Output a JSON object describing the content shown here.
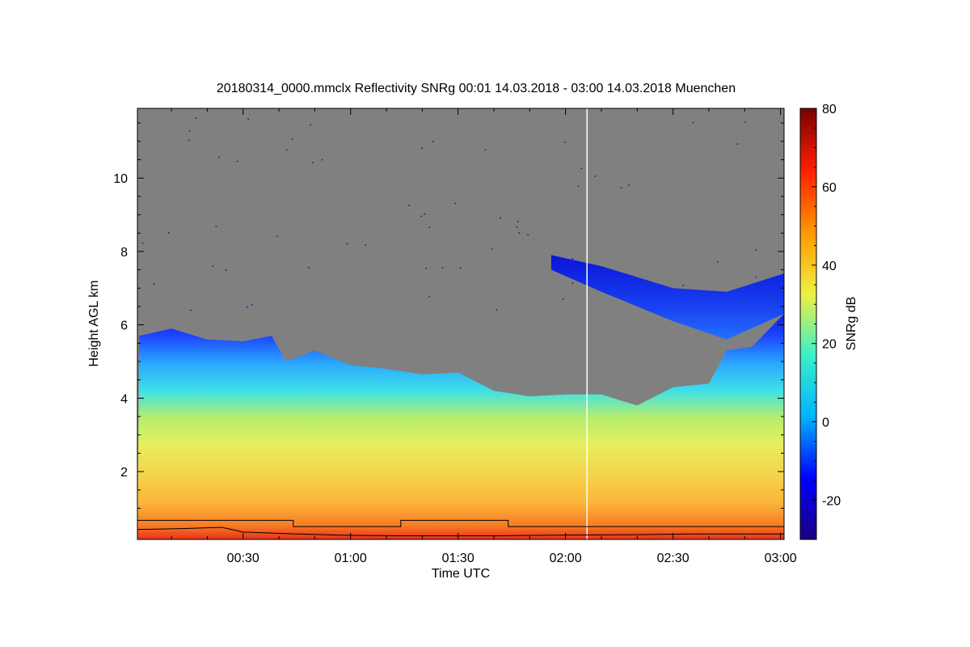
{
  "chart_data": {
    "type": "heatmap",
    "title": "20180314_0000.mmclx Reflectivity SNRg   00:01 14.03.2018 - 03:00 14.03.2018 Muenchen",
    "xlabel": "Time UTC",
    "ylabel": "Height AGL km",
    "x_ticks": [
      "00:30",
      "01:00",
      "01:30",
      "02:00",
      "02:30",
      "03:00"
    ],
    "x_tick_values_min": [
      30,
      60,
      90,
      120,
      150,
      180
    ],
    "xlim_min": [
      0.5,
      181
    ],
    "y_ticks": [
      2,
      4,
      6,
      8,
      10
    ],
    "ylim": [
      0.15,
      11.9
    ],
    "colorbar": {
      "label": "SNRg dB",
      "ticks": [
        80,
        60,
        40,
        20,
        0,
        -20
      ],
      "range": [
        -30,
        80
      ],
      "colors": [
        "#1a0080",
        "#0000ff",
        "#00b4ff",
        "#3cf0c8",
        "#f0f040",
        "#ff9600",
        "#ff1e00",
        "#780000"
      ]
    },
    "background_color": "#808080",
    "echo_top_km": [
      {
        "t": 1,
        "h": 5.7
      },
      {
        "t": 10,
        "h": 5.9
      },
      {
        "t": 20,
        "h": 5.6
      },
      {
        "t": 30,
        "h": 5.55
      },
      {
        "t": 38,
        "h": 5.7
      },
      {
        "t": 42,
        "h": 5.0
      },
      {
        "t": 50,
        "h": 5.3
      },
      {
        "t": 60,
        "h": 4.9
      },
      {
        "t": 70,
        "h": 4.8
      },
      {
        "t": 80,
        "h": 4.65
      },
      {
        "t": 90,
        "h": 4.7
      },
      {
        "t": 100,
        "h": 4.2
      },
      {
        "t": 110,
        "h": 4.05
      },
      {
        "t": 120,
        "h": 4.1
      },
      {
        "t": 130,
        "h": 4.1
      },
      {
        "t": 140,
        "h": 3.8
      },
      {
        "t": 150,
        "h": 4.3
      },
      {
        "t": 160,
        "h": 4.4
      },
      {
        "t": 165,
        "h": 5.3
      },
      {
        "t": 172,
        "h": 5.4
      },
      {
        "t": 181,
        "h": 6.3
      }
    ],
    "upper_cloud": [
      {
        "t": 116,
        "h_top": 7.9,
        "h_bottom": 7.5
      },
      {
        "t": 130,
        "h_top": 7.6,
        "h_bottom": 6.9
      },
      {
        "t": 150,
        "h_top": 7.0,
        "h_bottom": 6.1
      },
      {
        "t": 165,
        "h_top": 6.9,
        "h_bottom": 5.6
      },
      {
        "t": 181,
        "h_top": 7.4,
        "h_bottom": 6.3
      }
    ],
    "step_line_km": [
      {
        "t": 0,
        "h": 0.67
      },
      {
        "t": 44,
        "h": 0.67
      },
      {
        "t": 44,
        "h": 0.5
      },
      {
        "t": 74,
        "h": 0.5
      },
      {
        "t": 74,
        "h": 0.67
      },
      {
        "t": 104,
        "h": 0.67
      },
      {
        "t": 104,
        "h": 0.5
      },
      {
        "t": 181,
        "h": 0.5
      }
    ],
    "base_line_km": [
      {
        "t": 0,
        "h": 0.42
      },
      {
        "t": 15,
        "h": 0.45
      },
      {
        "t": 24,
        "h": 0.48
      },
      {
        "t": 30,
        "h": 0.35
      },
      {
        "t": 45,
        "h": 0.3
      },
      {
        "t": 60,
        "h": 0.26
      },
      {
        "t": 75,
        "h": 0.25
      },
      {
        "t": 100,
        "h": 0.25
      },
      {
        "t": 120,
        "h": 0.27
      },
      {
        "t": 140,
        "h": 0.28
      },
      {
        "t": 155,
        "h": 0.3
      },
      {
        "t": 181,
        "h": 0.3
      }
    ],
    "vertical_line_time_min": 126
  }
}
